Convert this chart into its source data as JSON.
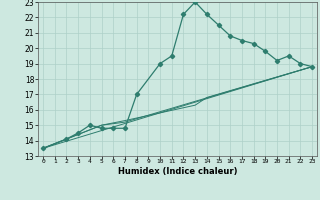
{
  "xlabel": "Humidex (Indice chaleur)",
  "bg_color": "#cde8e0",
  "grid_color": "#aed0c8",
  "line_color": "#2e7d6e",
  "xlim": [
    0,
    23
  ],
  "ylim": [
    13,
    23
  ],
  "xticks": [
    0,
    1,
    2,
    3,
    4,
    5,
    6,
    7,
    8,
    9,
    10,
    11,
    12,
    13,
    14,
    15,
    16,
    17,
    18,
    19,
    20,
    21,
    22,
    23
  ],
  "yticks": [
    13,
    14,
    15,
    16,
    17,
    18,
    19,
    20,
    21,
    22,
    23
  ],
  "line1_x": [
    0,
    2,
    3,
    4,
    5,
    6,
    7,
    8,
    10,
    11,
    12,
    13,
    14,
    15,
    16,
    17,
    18,
    19,
    20,
    21,
    22,
    23
  ],
  "line1_y": [
    13.5,
    14.1,
    14.5,
    15.0,
    14.8,
    14.8,
    14.8,
    17.0,
    19.0,
    19.5,
    22.2,
    23.0,
    22.2,
    21.5,
    20.8,
    20.5,
    20.3,
    19.8,
    19.2,
    19.5,
    19.0,
    18.8
  ],
  "line2_x": [
    0,
    23
  ],
  "line2_y": [
    13.5,
    18.8
  ],
  "line3_x": [
    0,
    5,
    7,
    23
  ],
  "line3_y": [
    13.5,
    15.0,
    15.2,
    18.8
  ],
  "line4_x": [
    0,
    5,
    7,
    13,
    14,
    23
  ],
  "line4_y": [
    13.5,
    15.0,
    15.3,
    16.3,
    16.8,
    18.8
  ]
}
